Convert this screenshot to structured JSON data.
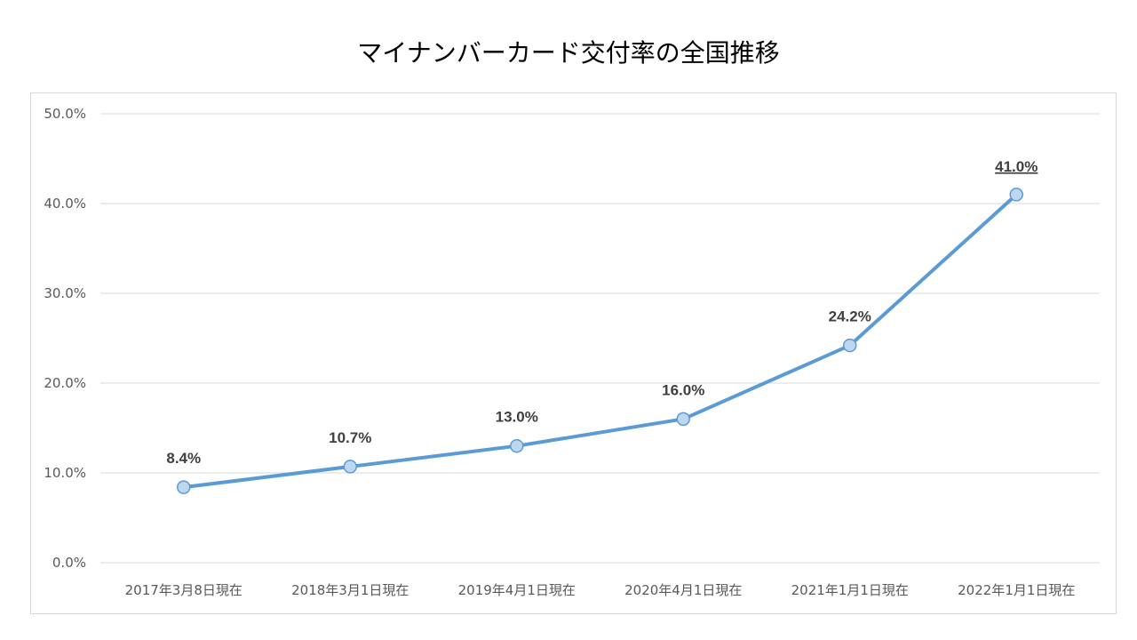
{
  "chart_data": {
    "type": "line",
    "title": "マイナンバーカード交付率の全国推移",
    "xlabel": "",
    "ylabel": "",
    "categories": [
      "2017年3月8日現在",
      "2018年3月1日現在",
      "2019年4月1日現在",
      "2020年4月1日現在",
      "2021年1月1日現在",
      "2022年1月1日現在"
    ],
    "series": [
      {
        "values": [
          8.4,
          10.7,
          13.0,
          16.0,
          24.2,
          41.0
        ],
        "data_labels": [
          "8.4%",
          "10.7%",
          "13.0%",
          "16.0%",
          "24.2%",
          "41.0%"
        ]
      }
    ],
    "ylim": [
      0,
      50
    ],
    "y_ticks": [
      0,
      10,
      20,
      30,
      40,
      50
    ],
    "y_tick_labels": [
      "0.0%",
      "10.0%",
      "20.0%",
      "30.0%",
      "40.0%",
      "50.0%"
    ],
    "grid": true,
    "highlighted_label_index": 5,
    "colors": {
      "line": "#5b9bd5",
      "marker_fill": "#bdd7ee",
      "marker_stroke": "#5b9bd5",
      "grid": "#d9d9d9",
      "data_label": "#404040",
      "highlight_label": "#ff0000",
      "tick_label": "#595959"
    }
  }
}
